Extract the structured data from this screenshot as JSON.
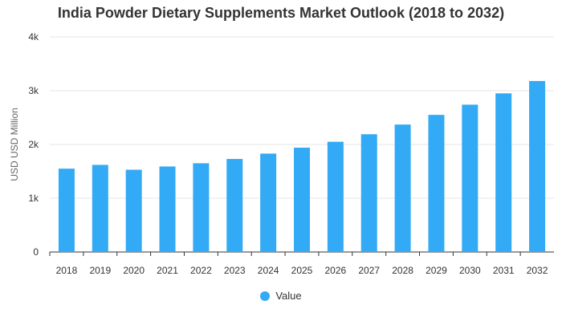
{
  "chart_data": {
    "type": "bar",
    "title": "India Powder Dietary Supplements Market Outlook (2018 to 2032)",
    "xlabel": "",
    "ylabel": "USD USD Million",
    "categories": [
      "2018",
      "2019",
      "2020",
      "2021",
      "2022",
      "2023",
      "2024",
      "2025",
      "2026",
      "2027",
      "2028",
      "2029",
      "2030",
      "2031",
      "2032"
    ],
    "series": [
      {
        "name": "Value",
        "values": [
          1550,
          1620,
          1530,
          1590,
          1650,
          1730,
          1830,
          1940,
          2050,
          2190,
          2370,
          2550,
          2740,
          2950,
          3180
        ]
      }
    ],
    "ylim": [
      0,
      4000
    ],
    "yticks": [
      0,
      1000,
      2000,
      3000,
      4000
    ],
    "ytick_labels": [
      "0",
      "1k",
      "2k",
      "3k",
      "4k"
    ],
    "grid": true,
    "legend_position": "bottom",
    "colors": {
      "bar": "#33aaf5",
      "grid": "#e6e6e6",
      "axis": "#333333"
    }
  }
}
